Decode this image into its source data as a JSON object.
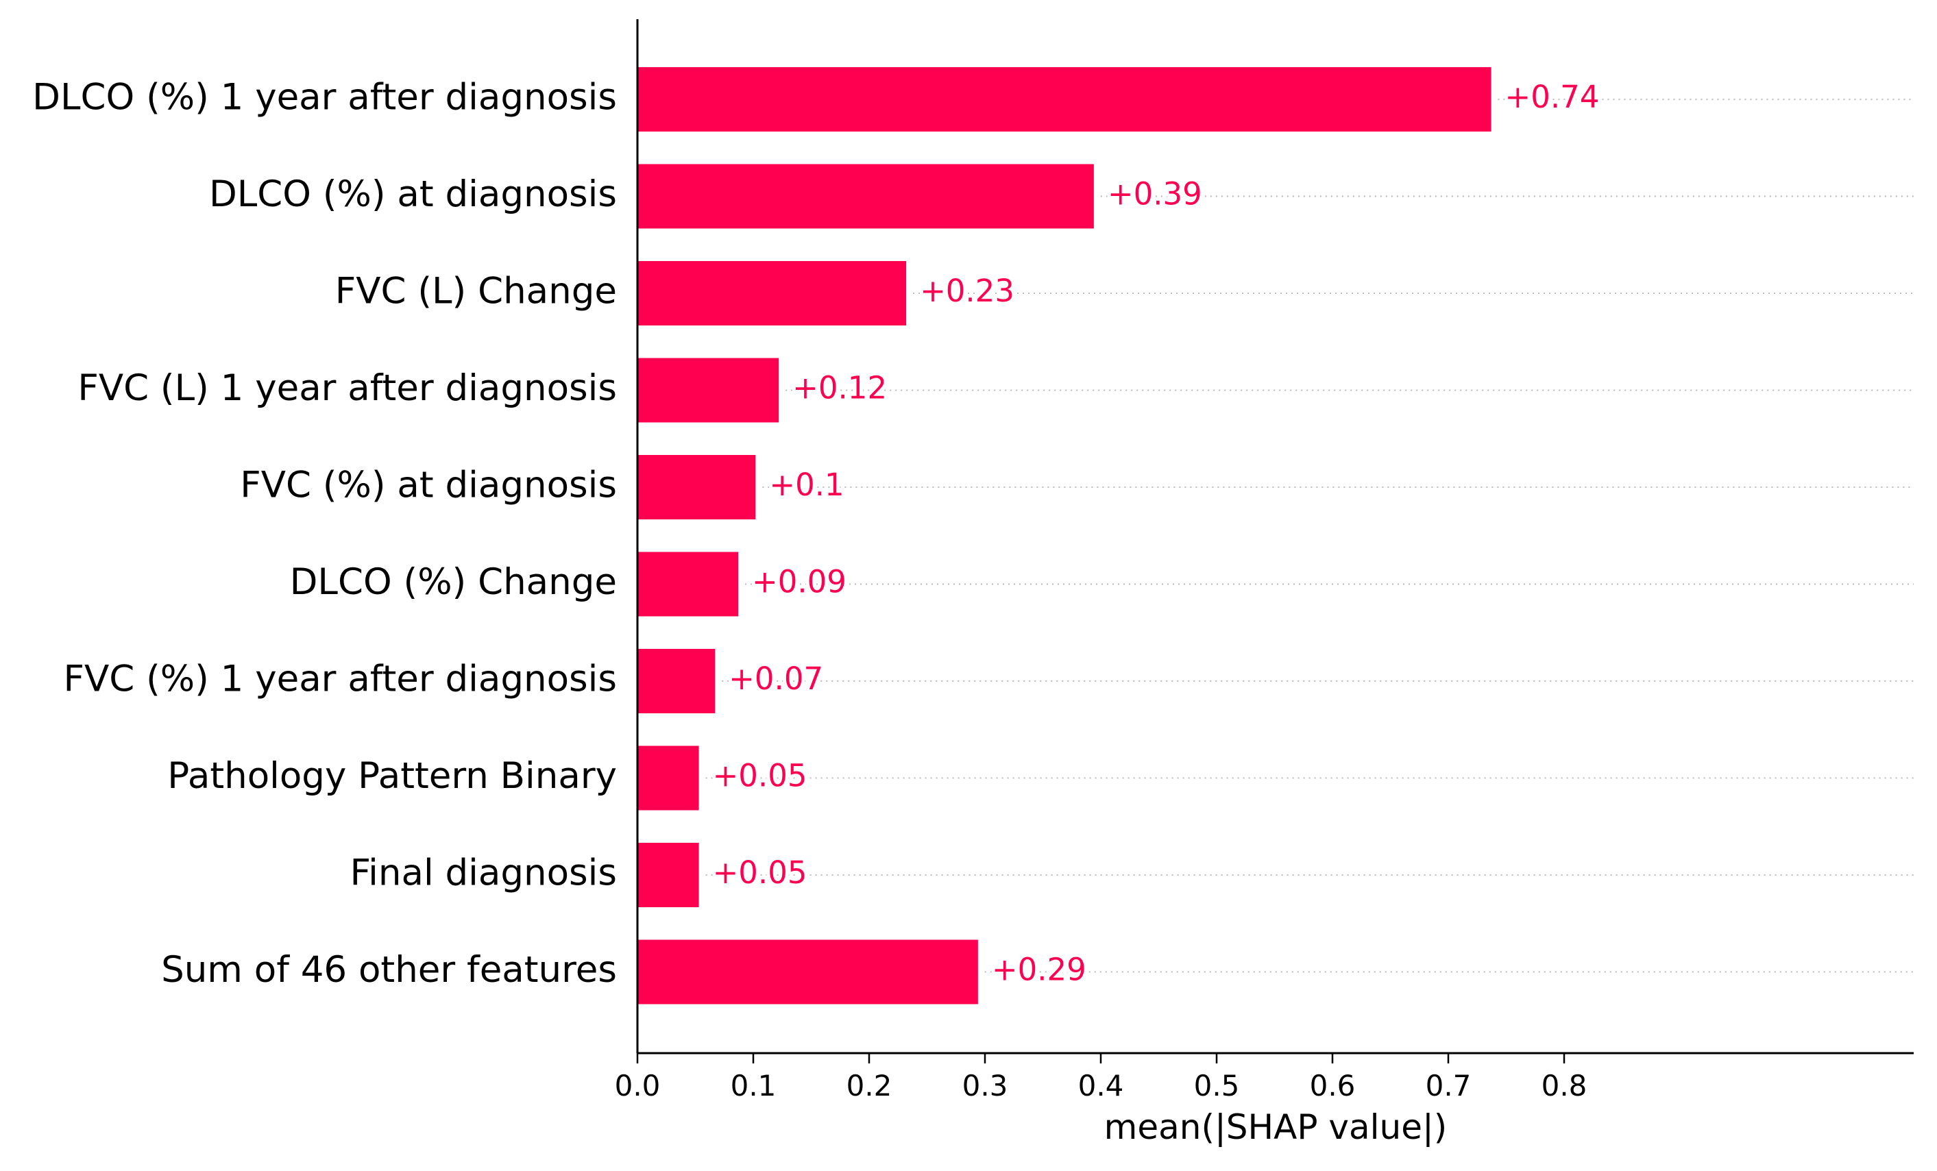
{
  "chart_data": {
    "type": "bar",
    "orientation": "horizontal",
    "categories": [
      "DLCO (%) 1 year after diagnosis",
      "DLCO (%) at diagnosis",
      "FVC (L) Change",
      "FVC (L) 1 year after diagnosis",
      "FVC (%) at diagnosis",
      "DLCO (%) Change",
      "FVC (%) 1 year after diagnosis",
      "Pathology Pattern Binary",
      "Final diagnosis",
      "Sum of 46 other features"
    ],
    "values": [
      0.737,
      0.394,
      0.232,
      0.122,
      0.102,
      0.087,
      0.067,
      0.053,
      0.053,
      0.294
    ],
    "value_labels": [
      "+0.74",
      "+0.39",
      "+0.23",
      "+0.12",
      "+0.1",
      "+0.09",
      "+0.07",
      "+0.05",
      "+0.05",
      "+0.29"
    ],
    "title": "",
    "xlabel": "mean(|SHAP value|)",
    "ylabel": "",
    "xlim": [
      0,
      0.81
    ],
    "xticks": [
      0.0,
      0.1,
      0.2,
      0.3,
      0.4,
      0.5,
      0.6,
      0.7,
      0.8
    ],
    "xtick_labels": [
      "0.0",
      "0.1",
      "0.2",
      "0.3",
      "0.4",
      "0.5",
      "0.6",
      "0.7",
      "0.8"
    ],
    "grid": "dotted row guides",
    "colors": {
      "bar": "#ff0051",
      "value_label": "#ff0051",
      "text": "#000000",
      "axis": "#000000",
      "guide": "#bbbbbb"
    }
  }
}
